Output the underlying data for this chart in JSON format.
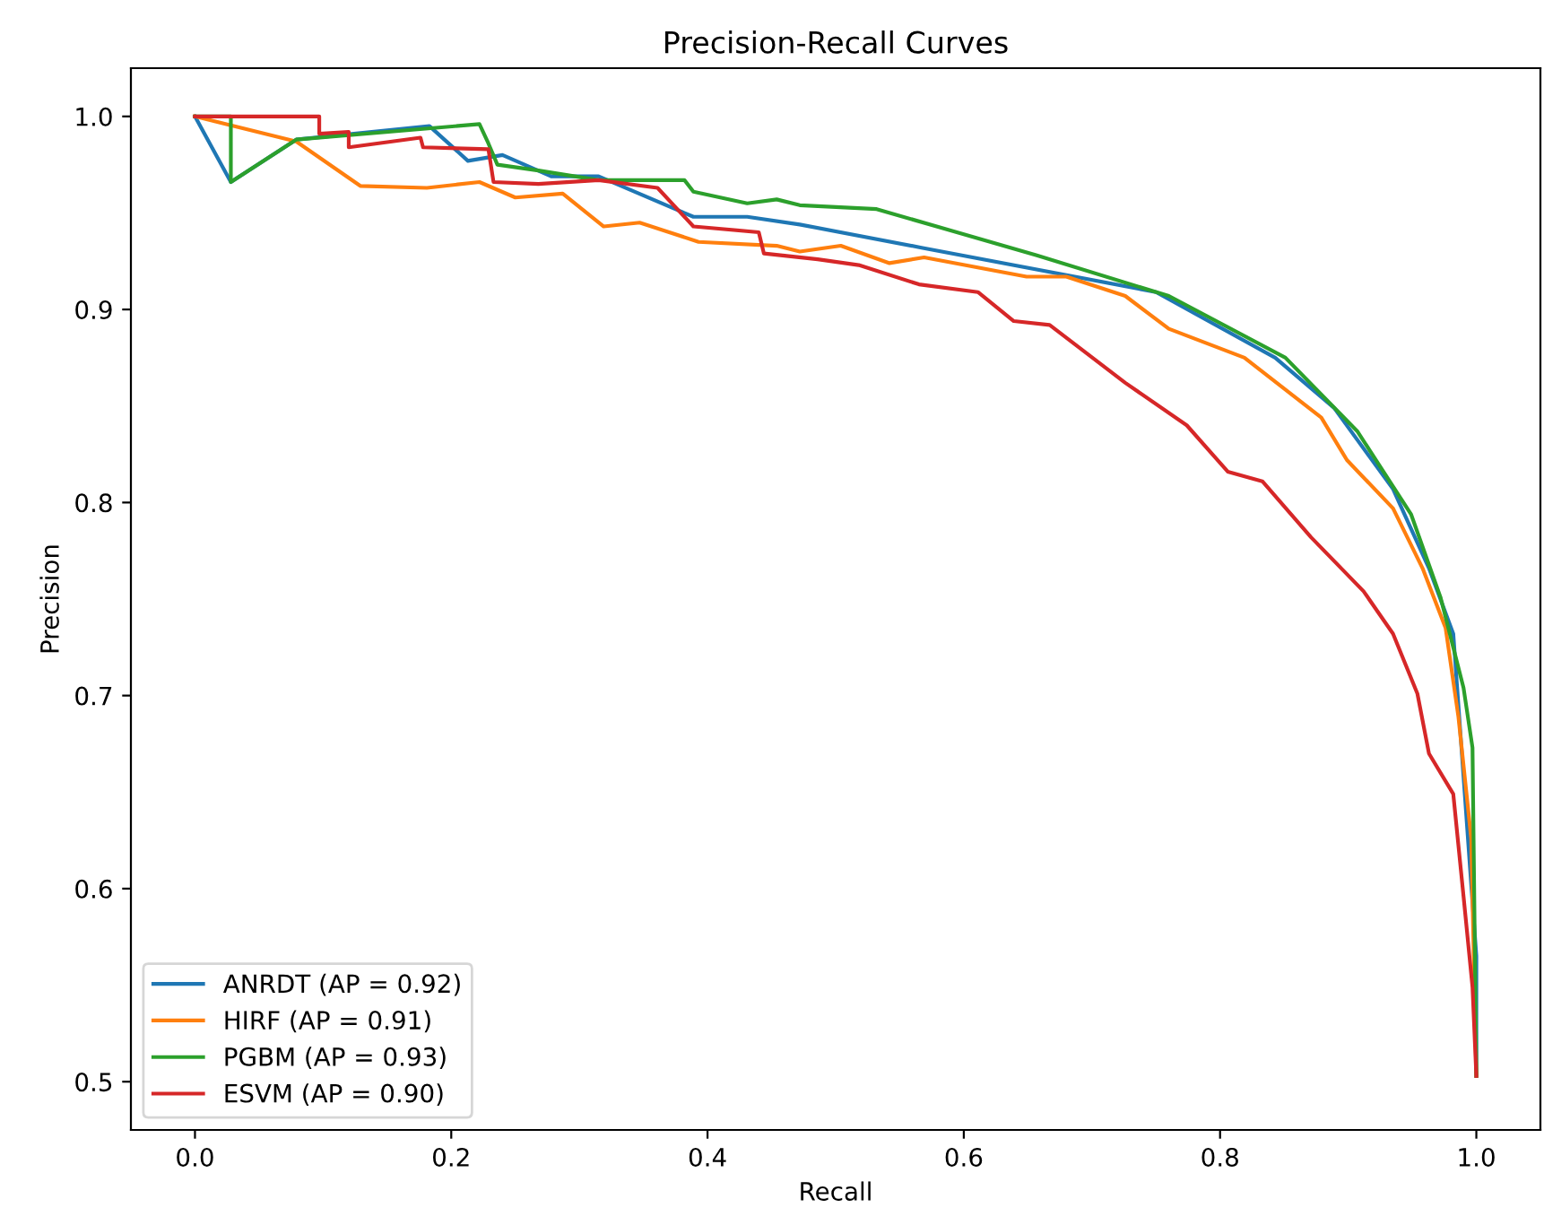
{
  "chart_data": {
    "type": "line",
    "title": "Precision-Recall Curves",
    "xlabel": "Recall",
    "ylabel": "Precision",
    "xlim": [
      -0.05,
      1.05
    ],
    "ylim": [
      0.475,
      1.025
    ],
    "xticks": [
      {
        "value": 0,
        "label": "0.0"
      },
      0.2,
      0.4,
      0.6,
      0.8,
      {
        "value": 1,
        "label": "1.0"
      }
    ],
    "yticks": [
      0.5,
      0.6,
      0.7,
      0.8,
      0.9,
      {
        "value": 1,
        "label": "1.0"
      }
    ],
    "grid": false,
    "legend": "bottom left",
    "marker": "none",
    "line_style": "solid",
    "series": [
      {
        "name": "ANRDT (AP = 0.92)",
        "color": "#1f77b4",
        "x": [
          0,
          0.028,
          0.079,
          0.183,
          0.213,
          0.24,
          0.278,
          0.315,
          0.389,
          0.431,
          0.472,
          0.567,
          0.75,
          0.843,
          0.889,
          0.935,
          0.963,
          0.982,
          0.99,
          1.0,
          1.0
        ],
        "values": [
          1.0,
          0.966,
          0.988,
          0.995,
          0.977,
          0.98,
          0.969,
          0.969,
          0.948,
          0.948,
          0.944,
          0.932,
          0.909,
          0.875,
          0.849,
          0.807,
          0.766,
          0.732,
          0.658,
          0.565,
          0.503
        ]
      },
      {
        "name": "HIRF (AP = 0.91)",
        "color": "#ff7f0e",
        "x": [
          0,
          0.079,
          0.129,
          0.181,
          0.222,
          0.25,
          0.287,
          0.319,
          0.347,
          0.393,
          0.454,
          0.472,
          0.504,
          0.542,
          0.569,
          0.649,
          0.68,
          0.726,
          0.76,
          0.819,
          0.879,
          0.899,
          0.935,
          0.958,
          0.976,
          0.986,
          0.996,
          1.0
        ],
        "values": [
          1.0,
          0.987,
          0.964,
          0.963,
          0.966,
          0.958,
          0.96,
          0.943,
          0.945,
          0.935,
          0.933,
          0.93,
          0.933,
          0.924,
          0.927,
          0.917,
          0.917,
          0.907,
          0.89,
          0.875,
          0.844,
          0.822,
          0.797,
          0.766,
          0.735,
          0.689,
          0.626,
          0.503
        ]
      },
      {
        "name": "PGBM (AP = 0.93)",
        "color": "#2ca02c",
        "x": [
          0,
          0.028,
          0.028,
          0.079,
          0.222,
          0.229,
          0.236,
          0.268,
          0.315,
          0.382,
          0.389,
          0.431,
          0.454,
          0.472,
          0.532,
          0.657,
          0.76,
          0.851,
          0.907,
          0.949,
          0.972,
          0.99,
          0.997,
          1.0
        ],
        "values": [
          1.0,
          1.0,
          0.966,
          0.988,
          0.996,
          0.986,
          0.975,
          0.972,
          0.967,
          0.967,
          0.961,
          0.955,
          0.957,
          0.954,
          0.952,
          0.928,
          0.907,
          0.875,
          0.837,
          0.794,
          0.751,
          0.704,
          0.673,
          0.503
        ]
      },
      {
        "name": "ESVM (AP = 0.90)",
        "color": "#d62728",
        "x": [
          0,
          0.097,
          0.097,
          0.12,
          0.12,
          0.176,
          0.178,
          0.229,
          0.233,
          0.268,
          0.315,
          0.361,
          0.389,
          0.44,
          0.444,
          0.486,
          0.518,
          0.565,
          0.611,
          0.639,
          0.667,
          0.726,
          0.774,
          0.806,
          0.833,
          0.871,
          0.912,
          0.935,
          0.954,
          0.963,
          0.982,
          0.99,
          0.997,
          1.0
        ],
        "values": [
          1.0,
          1.0,
          0.991,
          0.992,
          0.984,
          0.989,
          0.984,
          0.983,
          0.966,
          0.965,
          0.967,
          0.963,
          0.943,
          0.94,
          0.929,
          0.926,
          0.923,
          0.913,
          0.909,
          0.894,
          0.892,
          0.862,
          0.84,
          0.816,
          0.811,
          0.782,
          0.754,
          0.732,
          0.701,
          0.67,
          0.649,
          0.596,
          0.549,
          0.503
        ]
      }
    ]
  }
}
